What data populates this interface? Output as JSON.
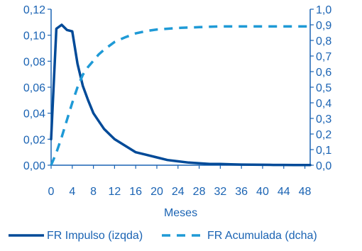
{
  "chart_data": {
    "type": "line",
    "xlabel": "Meses",
    "xlim": [
      0,
      49
    ],
    "x_ticks": [
      0,
      4,
      8,
      12,
      16,
      20,
      24,
      28,
      32,
      36,
      40,
      44,
      48
    ],
    "ylim_left": [
      0,
      0.12
    ],
    "y_ticks_left": [
      "0,00",
      "0,02",
      "0,04",
      "0,06",
      "0,08",
      "0,10",
      "0,12"
    ],
    "ylim_right": [
      0,
      1.0
    ],
    "y_ticks_right": [
      "0,0",
      "0,1",
      "0,2",
      "0,3",
      "0,4",
      "0,5",
      "0,6",
      "0,7",
      "0,8",
      "0,9",
      "1,0"
    ],
    "legend_placement": "bottom",
    "grid": false,
    "series": [
      {
        "name": "FR Impulso (izqda)",
        "axis": "left",
        "style": "solid",
        "color": "#004a98",
        "x": [
          0,
          1,
          2,
          3,
          4,
          5,
          6,
          7,
          8,
          9,
          10,
          11,
          12,
          14,
          16,
          18,
          20,
          22,
          24,
          26,
          28,
          30,
          32,
          34,
          36,
          38,
          40,
          42,
          44,
          46,
          48,
          49
        ],
        "values": [
          0.02,
          0.105,
          0.108,
          0.104,
          0.103,
          0.078,
          0.061,
          0.05,
          0.04,
          0.034,
          0.028,
          0.024,
          0.02,
          0.015,
          0.01,
          0.008,
          0.006,
          0.004,
          0.003,
          0.002,
          0.0015,
          0.001,
          0.001,
          0.0007,
          0.0005,
          0.0004,
          0.0003,
          0.0002,
          0.0002,
          0.0001,
          0.0001,
          0.0001
        ]
      },
      {
        "name": "FR Acumulada (dcha)",
        "axis": "right",
        "style": "dashed",
        "color": "#1f9ad6",
        "x": [
          0,
          1,
          2,
          3,
          4,
          5,
          6,
          7,
          8,
          9,
          10,
          12,
          14,
          16,
          18,
          20,
          24,
          28,
          32,
          36,
          40,
          44,
          48,
          49
        ],
        "values": [
          0.0,
          0.08,
          0.18,
          0.29,
          0.4,
          0.5,
          0.58,
          0.63,
          0.67,
          0.71,
          0.74,
          0.79,
          0.82,
          0.845,
          0.86,
          0.87,
          0.88,
          0.885,
          0.89,
          0.89,
          0.89,
          0.89,
          0.89,
          0.89
        ]
      }
    ]
  }
}
